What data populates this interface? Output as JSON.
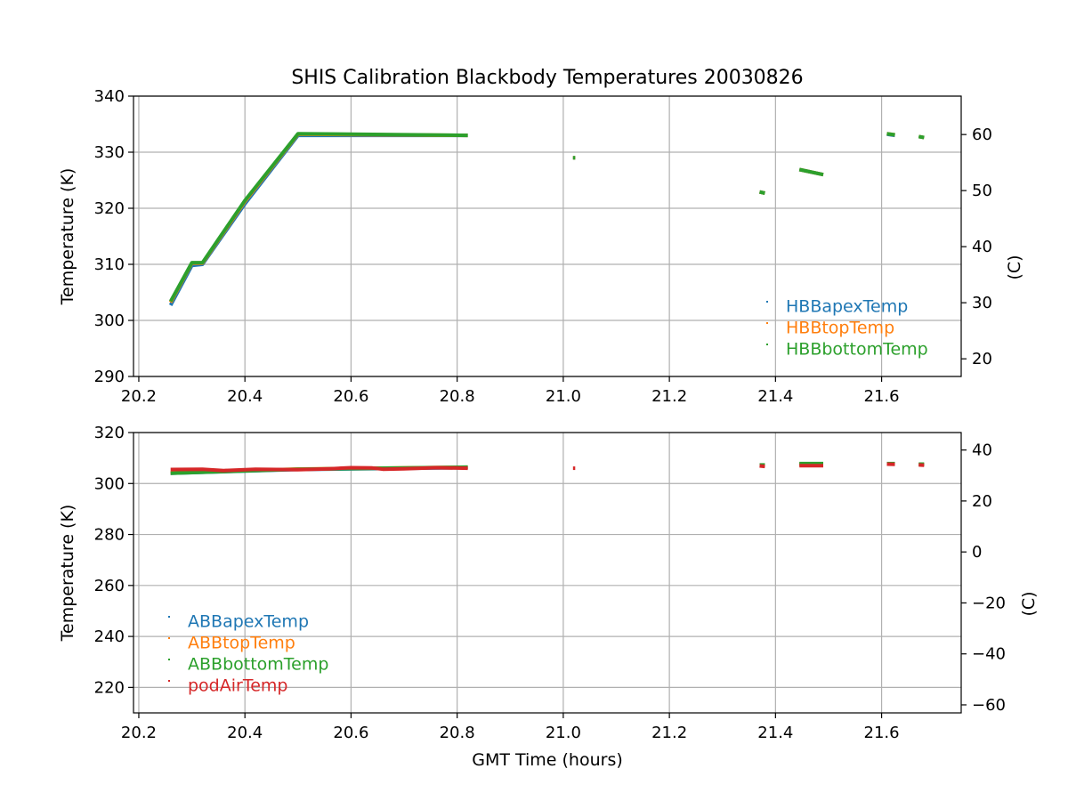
{
  "title": "SHIS Calibration Blackbody Temperatures 20030826",
  "chart_data": [
    {
      "type": "scatter",
      "xlabel": "",
      "ylabel": "Temperature (K)",
      "y2label": "(C)",
      "xlim": [
        20.19,
        21.75
      ],
      "ylim": [
        290,
        340
      ],
      "y2lim": [
        16.85,
        66.85
      ],
      "xticks": [
        "20.2",
        "20.4",
        "20.6",
        "20.8",
        "21.0",
        "21.2",
        "21.4",
        "21.6"
      ],
      "xtick_values": [
        20.2,
        20.4,
        20.6,
        20.8,
        21.0,
        21.2,
        21.4,
        21.6
      ],
      "yticks": [
        "290",
        "300",
        "310",
        "320",
        "330",
        "340"
      ],
      "ytick_values": [
        290,
        300,
        310,
        320,
        330,
        340
      ],
      "y2ticks": [
        "20",
        "30",
        "40",
        "50",
        "60"
      ],
      "y2tick_values": [
        20,
        30,
        40,
        50,
        60
      ],
      "grid": true,
      "legend": "lower-right",
      "series": [
        {
          "name": "HBBapexTemp",
          "color": "#1f77b4",
          "segments": [
            [
              [
                20.26,
                302.7
              ],
              [
                20.3,
                309.8
              ],
              [
                20.32,
                310.0
              ],
              [
                20.4,
                320.8
              ],
              [
                20.5,
                333.0
              ],
              [
                20.82,
                333.0
              ]
            ],
            [
              [
                21.02,
                329.0
              ]
            ],
            [
              [
                21.37,
                322.9
              ],
              [
                21.38,
                322.7
              ]
            ],
            [
              [
                21.445,
                326.9
              ],
              [
                21.49,
                326.0
              ]
            ],
            [
              [
                21.61,
                333.2
              ],
              [
                21.625,
                333.0
              ]
            ],
            [
              [
                21.67,
                332.8
              ],
              [
                21.68,
                332.6
              ]
            ]
          ]
        },
        {
          "name": "HBBtopTemp",
          "color": "#ff7f0e",
          "segments": [
            [
              [
                20.26,
                303.2
              ],
              [
                20.3,
                310.2
              ],
              [
                20.32,
                310.2
              ],
              [
                20.4,
                321.2
              ],
              [
                20.5,
                333.2
              ],
              [
                20.82,
                333.0
              ]
            ],
            [
              [
                21.02,
                329.0
              ]
            ],
            [
              [
                21.37,
                322.9
              ],
              [
                21.38,
                322.7
              ]
            ],
            [
              [
                21.445,
                326.9
              ],
              [
                21.49,
                326.0
              ]
            ],
            [
              [
                21.61,
                333.3
              ],
              [
                21.625,
                333.1
              ]
            ],
            [
              [
                21.67,
                332.8
              ],
              [
                21.68,
                332.6
              ]
            ]
          ]
        },
        {
          "name": "HBBbottomTemp",
          "color": "#2ca02c",
          "segments": [
            [
              [
                20.26,
                303.4
              ],
              [
                20.3,
                310.3
              ],
              [
                20.32,
                310.3
              ],
              [
                20.4,
                321.4
              ],
              [
                20.5,
                333.3
              ],
              [
                20.82,
                333.0
              ]
            ],
            [
              [
                21.02,
                329.0
              ]
            ],
            [
              [
                21.37,
                322.9
              ],
              [
                21.38,
                322.7
              ]
            ],
            [
              [
                21.445,
                326.9
              ],
              [
                21.49,
                326.0
              ]
            ],
            [
              [
                21.61,
                333.3
              ],
              [
                21.625,
                333.1
              ]
            ],
            [
              [
                21.67,
                332.8
              ],
              [
                21.68,
                332.6
              ]
            ]
          ]
        }
      ]
    },
    {
      "type": "scatter",
      "xlabel": "GMT Time (hours)",
      "ylabel": "Temperature (K)",
      "y2label": "(C)",
      "xlim": [
        20.19,
        21.75
      ],
      "ylim": [
        210,
        320
      ],
      "y2lim": [
        -63.15,
        46.85
      ],
      "xticks": [
        "20.2",
        "20.4",
        "20.6",
        "20.8",
        "21.0",
        "21.2",
        "21.4",
        "21.6"
      ],
      "xtick_values": [
        20.2,
        20.4,
        20.6,
        20.8,
        21.0,
        21.2,
        21.4,
        21.6
      ],
      "yticks": [
        "220",
        "240",
        "260",
        "280",
        "300",
        "320"
      ],
      "ytick_values": [
        220,
        240,
        260,
        280,
        300,
        320
      ],
      "y2ticks": [
        "−60",
        "−40",
        "−20",
        "0",
        "20",
        "40"
      ],
      "y2tick_values": [
        -60,
        -40,
        -20,
        0,
        20,
        40
      ],
      "grid": true,
      "legend": "lower-left",
      "series": [
        {
          "name": "ABBapexTemp",
          "color": "#1f77b4",
          "segments": [
            [
              [
                20.26,
                304.0
              ],
              [
                20.5,
                305.5
              ],
              [
                20.82,
                306.2
              ]
            ],
            [
              [
                21.37,
                307.0
              ],
              [
                21.38,
                307.0
              ]
            ],
            [
              [
                21.445,
                307.5
              ],
              [
                21.49,
                307.5
              ]
            ],
            [
              [
                21.61,
                307.6
              ],
              [
                21.625,
                307.6
              ]
            ],
            [
              [
                21.67,
                307.4
              ],
              [
                21.68,
                307.4
              ]
            ]
          ]
        },
        {
          "name": "ABBtopTemp",
          "color": "#ff7f0e",
          "segments": [
            [
              [
                20.26,
                304.2
              ],
              [
                20.5,
                305.7
              ],
              [
                20.82,
                306.4
              ]
            ],
            [
              [
                21.37,
                307.2
              ],
              [
                21.38,
                307.2
              ]
            ],
            [
              [
                21.445,
                307.6
              ],
              [
                21.49,
                307.6
              ]
            ],
            [
              [
                21.61,
                307.7
              ],
              [
                21.625,
                307.7
              ]
            ],
            [
              [
                21.67,
                307.5
              ],
              [
                21.68,
                307.5
              ]
            ]
          ]
        },
        {
          "name": "ABBbottomTemp",
          "color": "#2ca02c",
          "segments": [
            [
              [
                20.26,
                304.0
              ],
              [
                20.5,
                305.6
              ],
              [
                20.82,
                306.4
              ]
            ],
            [
              [
                21.37,
                307.3
              ],
              [
                21.38,
                307.3
              ]
            ],
            [
              [
                21.445,
                307.8
              ],
              [
                21.49,
                307.8
              ]
            ],
            [
              [
                21.61,
                307.8
              ],
              [
                21.625,
                307.8
              ]
            ],
            [
              [
                21.67,
                307.6
              ],
              [
                21.68,
                307.6
              ]
            ]
          ]
        },
        {
          "name": "podAirTemp",
          "color": "#d62728",
          "segments": [
            [
              [
                20.26,
                305.5
              ],
              [
                20.32,
                305.6
              ],
              [
                20.36,
                305.1
              ],
              [
                20.42,
                305.6
              ],
              [
                20.5,
                305.4
              ],
              [
                20.56,
                305.8
              ],
              [
                20.6,
                306.2
              ],
              [
                20.64,
                306.1
              ],
              [
                20.66,
                305.6
              ],
              [
                20.7,
                305.8
              ],
              [
                20.76,
                306.2
              ],
              [
                20.82,
                306.0
              ]
            ],
            [
              [
                21.02,
                306.0
              ]
            ],
            [
              [
                21.37,
                306.9
              ],
              [
                21.38,
                306.7
              ]
            ],
            [
              [
                21.445,
                307.0
              ],
              [
                21.49,
                307.0
              ]
            ],
            [
              [
                21.61,
                307.6
              ],
              [
                21.625,
                307.5
              ]
            ],
            [
              [
                21.67,
                307.3
              ],
              [
                21.68,
                307.2
              ]
            ]
          ]
        }
      ]
    }
  ]
}
